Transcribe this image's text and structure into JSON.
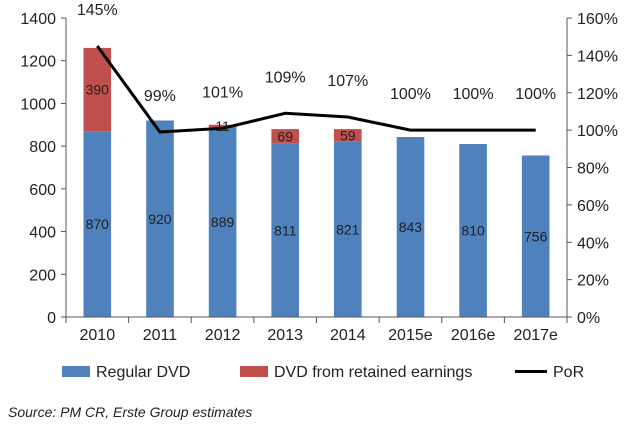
{
  "chart_data": {
    "type": "bar",
    "categories": [
      "2010",
      "2011",
      "2012",
      "2013",
      "2014",
      "2015e",
      "2016e",
      "2017e"
    ],
    "series": [
      {
        "name": "Regular DVD",
        "kind": "bar",
        "stack": "dvd",
        "axis": "left",
        "color": "#4f81bd",
        "values": [
          870,
          920,
          889,
          811,
          821,
          843,
          810,
          756
        ],
        "labels": [
          "870",
          "920",
          "889",
          "811",
          "821",
          "843",
          "810",
          "756"
        ]
      },
      {
        "name": "DVD from retained earnings",
        "kind": "bar",
        "stack": "dvd",
        "axis": "left",
        "color": "#c0504d",
        "values": [
          390,
          0,
          11,
          69,
          59,
          0,
          0,
          0
        ],
        "labels": [
          "390",
          "",
          "11",
          "69",
          "59",
          "",
          "",
          ""
        ]
      },
      {
        "name": "PoR",
        "kind": "line",
        "axis": "right",
        "color": "#000000",
        "values": [
          145,
          99,
          101,
          109,
          107,
          100,
          100,
          100
        ],
        "labels": [
          "145%",
          "99%",
          "101%",
          "109%",
          "107%",
          "100%",
          "100%",
          "100%"
        ]
      }
    ],
    "y_left": {
      "min": 0,
      "max": 1400,
      "step": 200,
      "ticks": [
        "0",
        "200",
        "400",
        "600",
        "800",
        "1000",
        "1200",
        "1400"
      ]
    },
    "y_right": {
      "min": 0,
      "max": 160,
      "step": 20,
      "ticks": [
        "0%",
        "20%",
        "40%",
        "60%",
        "80%",
        "100%",
        "120%",
        "140%",
        "160%"
      ]
    },
    "legend": {
      "position": "bottom",
      "items": [
        "Regular DVD",
        "DVD from retained earnings",
        "PoR"
      ]
    },
    "grid": false
  },
  "source": "Source: PM CR, Erste Group estimates"
}
